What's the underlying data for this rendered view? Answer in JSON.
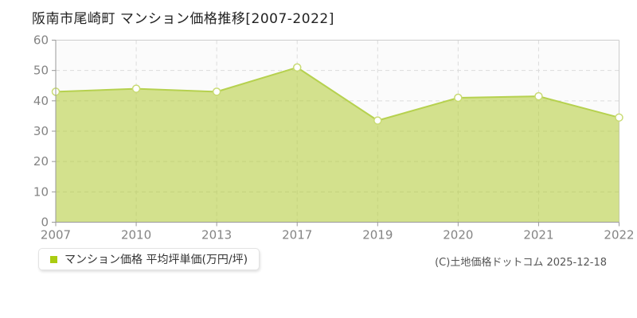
{
  "title": "阪南市尾崎町 マンション価格推移[2007-2022]",
  "legend": {
    "label": "マンション価格 平均坪単価(万円/坪)",
    "marker_color": "#aacc11"
  },
  "copyright": "(C)土地価格ドットコム 2025-12-18",
  "chart_data": {
    "type": "area",
    "title": "阪南市尾崎町 マンション価格推移[2007-2022]",
    "categories": [
      "2007",
      "2010",
      "2013",
      "2017",
      "2019",
      "2020",
      "2021",
      "2022"
    ],
    "series": [
      {
        "name": "マンション価格 平均坪単価(万円/坪)",
        "values": [
          43,
          44,
          43,
          51,
          33.5,
          41,
          41.5,
          34.5
        ]
      }
    ],
    "xlabel": "",
    "ylabel": "平均坪単価(万円/坪)",
    "ylim": [
      0,
      60
    ],
    "yticks": [
      0,
      10,
      20,
      30,
      40,
      50,
      60
    ],
    "grid": true,
    "grid_style": "dashed",
    "legend_position": "bottom-left",
    "colors": {
      "area_fill_rgba": "rgba(179,204,51,0.55)",
      "line": "#b6d14f",
      "point_fill": "#ffffff",
      "point_stroke": "#c9db74",
      "grid": "#dcdcdc",
      "axis": "#999999",
      "border": "#cccccc",
      "plot_bg": "#fbfbfb",
      "tick_label": "#848484",
      "title": "#222222"
    }
  }
}
